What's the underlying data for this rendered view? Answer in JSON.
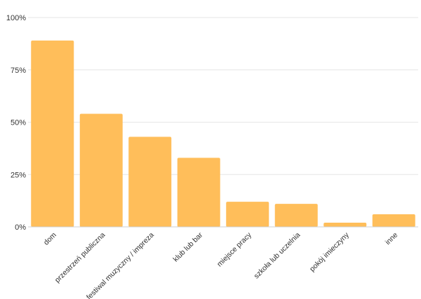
{
  "chart_data": {
    "type": "bar",
    "categories": [
      "dom",
      "przestrzeń publiczna",
      "festiwal muzyczny / impreza",
      "klub lub bar",
      "miejsce pracy",
      "szkoła lub uczelnia",
      "pokój imieczyny",
      "inne"
    ],
    "values": [
      89,
      54,
      43,
      33,
      12,
      11,
      2,
      6
    ],
    "y_unit": "%",
    "ylim": [
      0,
      100
    ],
    "y_ticks": [
      "0%",
      "25%",
      "50%",
      "75%",
      "100%"
    ],
    "grid": true,
    "bar_color": "#FFBE5A",
    "title": "",
    "xlabel": "",
    "ylabel": ""
  }
}
